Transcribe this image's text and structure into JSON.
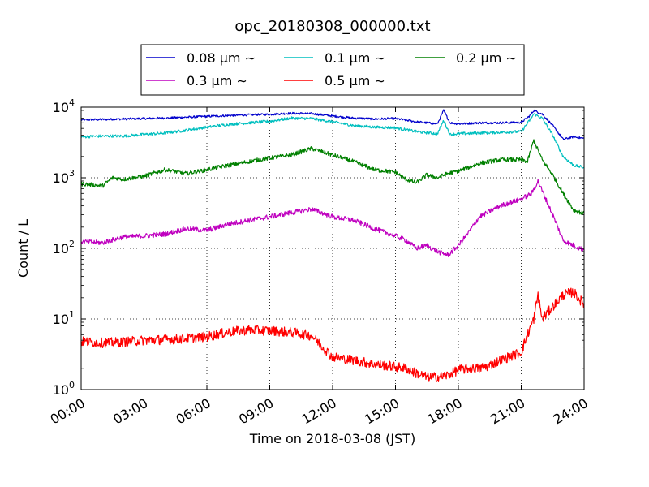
{
  "chart_data": {
    "type": "line",
    "title": "opc_20180308_000000.txt",
    "xlabel": "Time on 2018-03-08 (JST)",
    "ylabel": "Count / L",
    "x_unit": "hours",
    "xlim": [
      0,
      24
    ],
    "ylim": [
      1,
      10000
    ],
    "yscale": "log",
    "grid": true,
    "legend_position": "top-center, above plot",
    "x_ticks": [
      "00:00",
      "03:00",
      "06:00",
      "09:00",
      "12:00",
      "15:00",
      "18:00",
      "21:00",
      "24:00"
    ],
    "y_ticks": [
      {
        "base": "10",
        "exp": "0",
        "value": 1
      },
      {
        "base": "10",
        "exp": "1",
        "value": 10
      },
      {
        "base": "10",
        "exp": "2",
        "value": 100
      },
      {
        "base": "10",
        "exp": "3",
        "value": 1000
      },
      {
        "base": "10",
        "exp": "4",
        "value": 10000
      }
    ],
    "series": [
      {
        "name": "0.08 μm ∼",
        "color": "#0000cc",
        "x": [
          0,
          1,
          2,
          3,
          4,
          5,
          6,
          7,
          8,
          9,
          10,
          11,
          12,
          13,
          14,
          15,
          16,
          17,
          17.3,
          17.6,
          18,
          19,
          20,
          21,
          21.4,
          21.6,
          22,
          22.5,
          23,
          23.5,
          24
        ],
        "y": [
          6600,
          6700,
          6800,
          6900,
          7000,
          7200,
          7400,
          7600,
          7800,
          7900,
          8200,
          8100,
          7500,
          7000,
          6800,
          6900,
          6200,
          5800,
          9000,
          6000,
          5800,
          6000,
          6000,
          6100,
          7500,
          9000,
          8000,
          5500,
          3500,
          3800,
          3600
        ]
      },
      {
        "name": "0.1 μm ∼",
        "color": "#00bfbf",
        "x": [
          0,
          1,
          2,
          3,
          4,
          5,
          6,
          7,
          8,
          9,
          10,
          11,
          12,
          13,
          14,
          15,
          16,
          17,
          17.3,
          17.6,
          18,
          19,
          20,
          21,
          21.4,
          21.6,
          22,
          22.5,
          23,
          23.5,
          24
        ],
        "y": [
          3800,
          3900,
          3900,
          4100,
          4300,
          4700,
          5200,
          5700,
          6000,
          6300,
          7000,
          6900,
          6200,
          5500,
          5200,
          5100,
          4500,
          4200,
          6500,
          4100,
          4200,
          4300,
          4400,
          4500,
          6500,
          8000,
          7000,
          4000,
          2000,
          1500,
          1400
        ]
      },
      {
        "name": "0.2 μm ∼",
        "color": "#008000",
        "x": [
          0,
          0.5,
          1,
          1.5,
          2,
          3,
          4,
          5,
          6,
          7,
          8,
          9,
          10,
          11,
          12,
          13,
          14,
          15,
          15.5,
          16,
          16.5,
          17,
          17.5,
          18,
          18.5,
          19,
          20,
          21,
          21.3,
          21.6,
          22,
          22.5,
          23,
          23.5,
          24
        ],
        "y": [
          820,
          800,
          760,
          1000,
          950,
          1050,
          1300,
          1150,
          1300,
          1500,
          1700,
          1900,
          2100,
          2600,
          2100,
          1700,
          1300,
          1200,
          950,
          850,
          1100,
          1000,
          1150,
          1250,
          1400,
          1600,
          1800,
          1800,
          1700,
          3400,
          1800,
          1100,
          600,
          350,
          310
        ]
      },
      {
        "name": "0.3 μm ∼",
        "color": "#bf00bf",
        "x": [
          0,
          1,
          2,
          3,
          4,
          5,
          6,
          7,
          8,
          9,
          10,
          11,
          12,
          13,
          14,
          15,
          15.5,
          16,
          16.5,
          17,
          17.5,
          18,
          18.5,
          19,
          20,
          21,
          21.5,
          21.8,
          22,
          22.5,
          23,
          23.5,
          24
        ],
        "y": [
          125,
          120,
          145,
          150,
          160,
          190,
          180,
          220,
          250,
          280,
          320,
          360,
          280,
          250,
          190,
          150,
          130,
          100,
          110,
          90,
          80,
          110,
          170,
          280,
          400,
          500,
          600,
          900,
          650,
          300,
          130,
          110,
          95
        ]
      },
      {
        "name": "0.5 μm ∼",
        "color": "#ff0000",
        "x": [
          0,
          1,
          2,
          3,
          4,
          5,
          6,
          7,
          8,
          9,
          10,
          11,
          12,
          13,
          14,
          15,
          15.5,
          16,
          16.5,
          17,
          17.5,
          18,
          18.5,
          19,
          19.5,
          20,
          21,
          21.3,
          21.6,
          21.8,
          22,
          22.5,
          23,
          23.5,
          24
        ],
        "y": [
          4.8,
          4.6,
          4.7,
          5.0,
          5.1,
          5.3,
          5.6,
          6.5,
          7.0,
          6.8,
          6.5,
          5.8,
          2.9,
          2.6,
          2.3,
          2.1,
          2.0,
          1.7,
          1.5,
          1.5,
          1.6,
          1.9,
          2.0,
          2.0,
          2.2,
          2.6,
          3.4,
          6.0,
          10,
          22,
          10,
          15,
          22,
          24,
          16
        ]
      }
    ]
  }
}
